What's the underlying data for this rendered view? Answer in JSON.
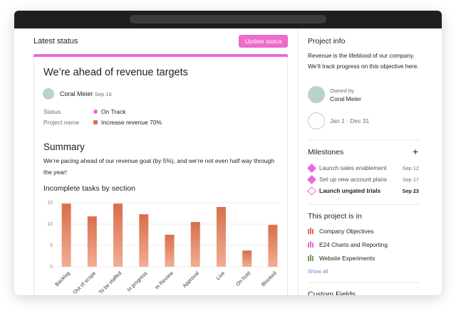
{
  "header": {
    "title": "Latest status",
    "button": "Update status"
  },
  "status": {
    "heading": "We’re ahead of revenue targets",
    "author": "Coral Meier",
    "date": "Sep 16",
    "fields": [
      {
        "label": "Status",
        "value": "On Track"
      },
      {
        "label": "Project name",
        "value": "Increase revenue 70%"
      }
    ],
    "summary_title": "Summary",
    "summary_text": "We’re pacing ahead of our revenue goal (by 5%), and we’re not even half way through the year!"
  },
  "chart_data": {
    "type": "bar",
    "title": "Incomplete tasks by section",
    "categories": [
      "Backlog",
      "Out of scope",
      "To be staffed",
      "In progress",
      "In Review",
      "Approval",
      "Live",
      "On hold",
      "Blocked"
    ],
    "values": [
      14.8,
      11.8,
      14.8,
      12.3,
      7.5,
      10.5,
      14,
      3.8,
      9.8
    ],
    "color": "#e07a55",
    "ylim": [
      0,
      15
    ],
    "yticks": [
      0,
      5,
      10,
      15
    ],
    "grid": true
  },
  "sidebar": {
    "project_info_title": "Project info",
    "description": "Revenue is the lifeblood of our company. We’ll track progress on this objective here.",
    "owned_by_label": "Owned by",
    "owner": "Coral Meier",
    "dates": "Jan 1 - Dec 31",
    "milestones_title": "Milestones",
    "milestones": [
      {
        "name": "Launch sales enablement",
        "date": "Sep 12"
      },
      {
        "name": "Set up new account plans",
        "date": "Sep 17"
      },
      {
        "name": "Launch ungated trials",
        "date": "Sep 23"
      }
    ],
    "project_in_title": "This project is in",
    "projects": [
      "Company Objectives",
      "E24 Charts and Reporting",
      "Website Experiments"
    ],
    "show_all": "Show all",
    "custom_fields_title": "Custom Fields"
  }
}
